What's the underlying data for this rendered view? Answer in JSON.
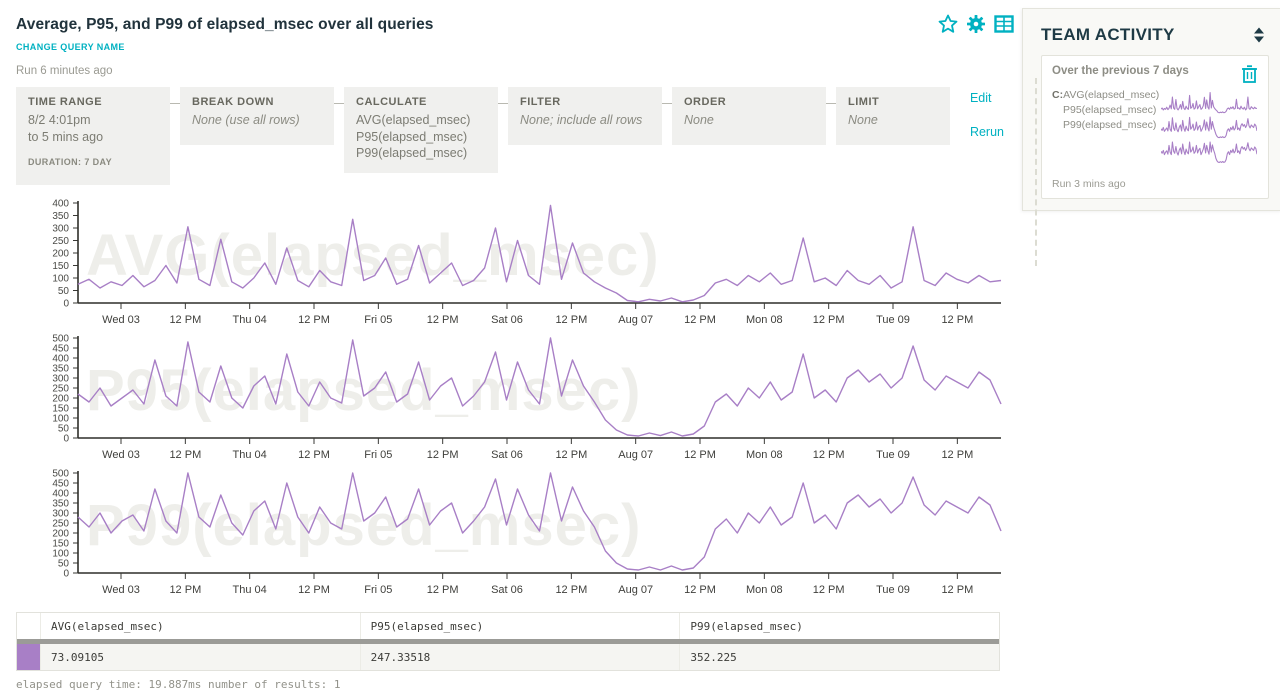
{
  "header": {
    "title": "Average, P95, and P99 of elapsed_msec over all queries",
    "change_query_name": "CHANGE QUERY NAME",
    "run_ago": "Run 6 minutes ago",
    "edit_label": "Edit",
    "rerun_label": "Rerun",
    "icons": [
      "star-icon",
      "gear-icon",
      "table-view-icon"
    ]
  },
  "builder": {
    "boxes": [
      {
        "label": "TIME RANGE",
        "line1": "8/2 4:01pm",
        "line2": "to 5 mins ago",
        "footnote": "DURATION: 7 DAY"
      },
      {
        "label": "BREAK DOWN",
        "line1": "None (use all rows)"
      },
      {
        "label": "CALCULATE",
        "line1": "AVG(elapsed_msec)",
        "line2": "P95(elapsed_msec)",
        "line3": "P99(elapsed_msec)"
      },
      {
        "label": "FILTER",
        "line1": "None; include all rows"
      },
      {
        "label": "ORDER",
        "line1": "None"
      },
      {
        "label": "LIMIT",
        "line1": "None"
      }
    ]
  },
  "chart_data": [
    {
      "type": "line",
      "watermark": "AVG(elapsed_msec)",
      "ylabel_ticks": [
        0,
        50,
        100,
        150,
        200,
        250,
        300,
        350,
        400
      ],
      "ylim": [
        0,
        400
      ],
      "ytick_step": 50,
      "grid": false,
      "legend": "none",
      "x_ticks": [
        "Wed 03",
        "12 PM",
        "Thu 04",
        "12 PM",
        "Fri 05",
        "12 PM",
        "Sat 06",
        "12 PM",
        "Aug 07",
        "12 PM",
        "Mon 08",
        "12 PM",
        "Tue 09",
        "12 PM"
      ],
      "x_range": "8/2 4:01pm to 5 mins ago (7 days, ~2h resolution)",
      "values": [
        75,
        95,
        60,
        85,
        70,
        110,
        65,
        90,
        150,
        80,
        305,
        95,
        70,
        255,
        85,
        60,
        100,
        160,
        75,
        220,
        90,
        65,
        130,
        85,
        70,
        335,
        90,
        110,
        180,
        75,
        95,
        230,
        80,
        120,
        160,
        70,
        90,
        140,
        300,
        85,
        250,
        110,
        75,
        390,
        95,
        240,
        120,
        85,
        60,
        40,
        10,
        5,
        15,
        8,
        20,
        5,
        12,
        30,
        80,
        95,
        70,
        110,
        85,
        120,
        75,
        90,
        260,
        85,
        100,
        70,
        130,
        90,
        75,
        110,
        60,
        85,
        305,
        90,
        70,
        120,
        95,
        80,
        110,
        85,
        90
      ]
    },
    {
      "type": "line",
      "watermark": "P95(elapsed_msec)",
      "ylabel_ticks": [
        0,
        50,
        100,
        150,
        200,
        250,
        300,
        350,
        400,
        450,
        500
      ],
      "ylim": [
        0,
        500
      ],
      "ytick_step": 50,
      "grid": false,
      "legend": "none",
      "values": [
        220,
        180,
        250,
        160,
        200,
        240,
        170,
        390,
        210,
        160,
        480,
        230,
        180,
        360,
        200,
        150,
        260,
        310,
        170,
        420,
        230,
        160,
        280,
        200,
        175,
        490,
        210,
        250,
        330,
        180,
        220,
        380,
        190,
        260,
        300,
        160,
        210,
        280,
        430,
        190,
        380,
        240,
        170,
        500,
        210,
        390,
        260,
        180,
        90,
        40,
        15,
        10,
        25,
        12,
        30,
        10,
        20,
        60,
        180,
        220,
        160,
        250,
        200,
        280,
        190,
        230,
        420,
        200,
        240,
        180,
        300,
        340,
        280,
        320,
        250,
        300,
        460,
        290,
        240,
        310,
        280,
        250,
        330,
        290,
        170
      ]
    },
    {
      "type": "line",
      "watermark": "P99(elapsed_msec)",
      "ylabel_ticks": [
        0,
        50,
        100,
        150,
        200,
        250,
        300,
        350,
        400,
        450,
        500
      ],
      "ylim": [
        0,
        500
      ],
      "ytick_step": 50,
      "grid": false,
      "legend": "none",
      "values": [
        280,
        230,
        300,
        200,
        260,
        290,
        210,
        420,
        260,
        200,
        500,
        280,
        230,
        390,
        250,
        190,
        310,
        360,
        220,
        450,
        280,
        200,
        330,
        250,
        220,
        500,
        260,
        300,
        380,
        230,
        270,
        420,
        240,
        310,
        350,
        200,
        260,
        330,
        470,
        240,
        420,
        290,
        210,
        500,
        260,
        430,
        310,
        230,
        110,
        50,
        20,
        15,
        30,
        15,
        35,
        15,
        25,
        80,
        220,
        270,
        200,
        300,
        250,
        330,
        240,
        280,
        450,
        250,
        290,
        220,
        350,
        390,
        330,
        370,
        300,
        350,
        480,
        340,
        290,
        360,
        330,
        300,
        380,
        340,
        210
      ]
    }
  ],
  "table": {
    "columns": [
      "AVG(elapsed_msec)",
      "P95(elapsed_msec)",
      "P99(elapsed_msec)"
    ],
    "row": {
      "swatch_color": "#a87fc6",
      "avg": "73.09105",
      "p95": "247.33518",
      "p99": "352.225"
    }
  },
  "status_line": "elapsed query time: 19.887ms number of results: 1",
  "team_activity": {
    "title": "TEAM ACTIVITY",
    "card": {
      "heading": "Over the previous 7 days",
      "prefix": "C:",
      "line1": "AVG(elapsed_msec)",
      "line2": "P95(elapsed_msec)",
      "line3": "P99(elapsed_msec)",
      "run_ago": "Run 3 mins ago"
    }
  },
  "colors": {
    "accent": "#00b1c1",
    "series": "#a87fc6",
    "heading_dark": "#1e3a45"
  }
}
